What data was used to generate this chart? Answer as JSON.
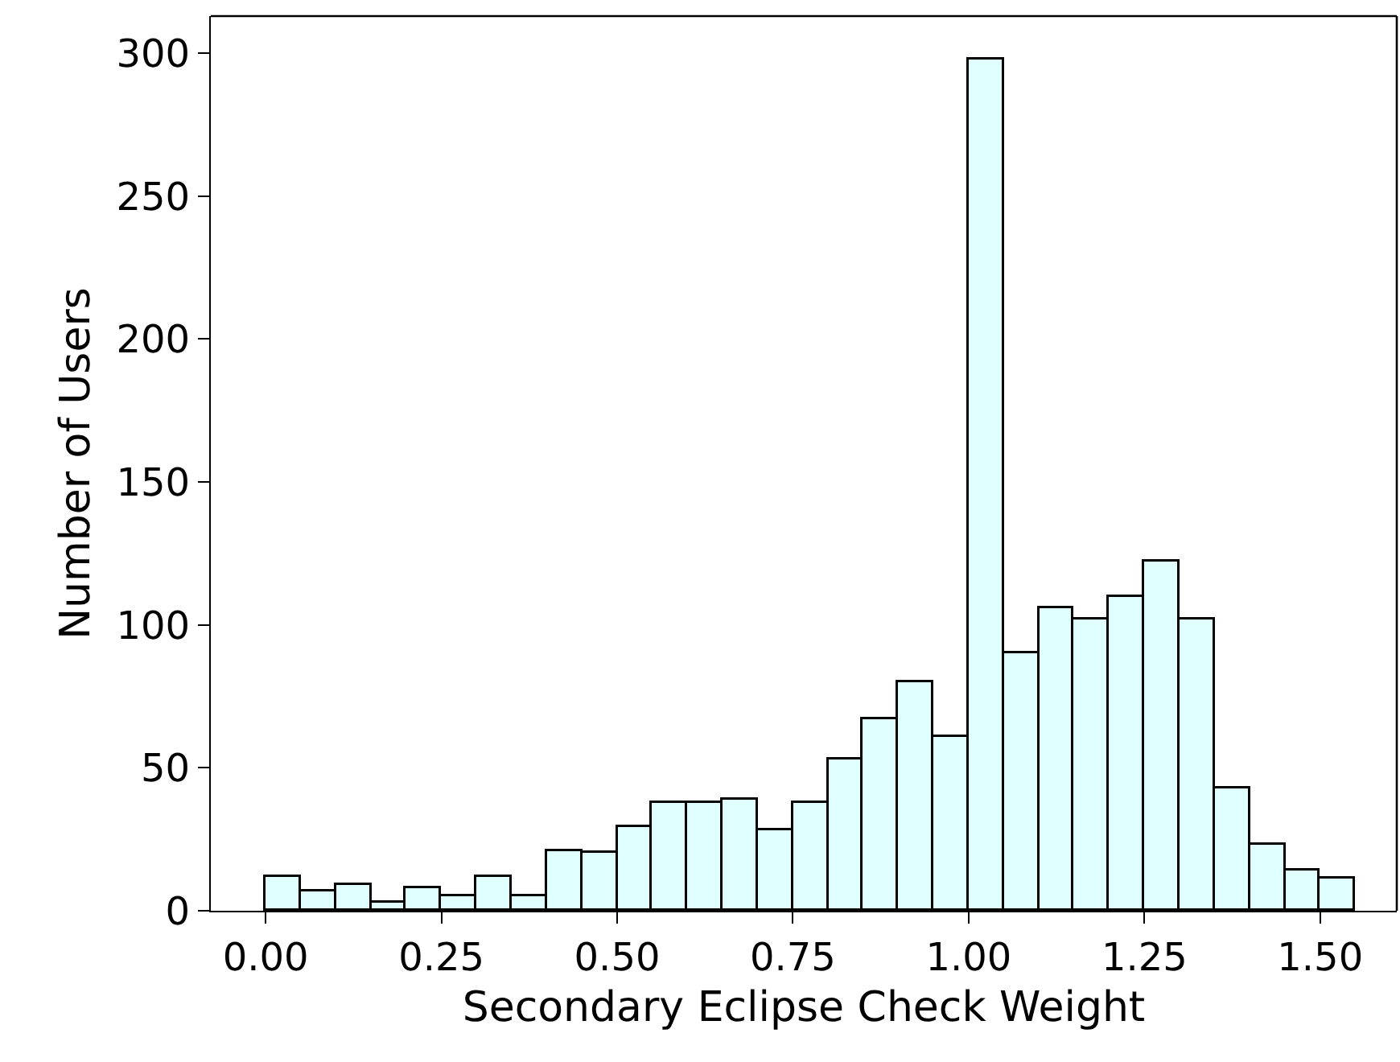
{
  "chart_data": {
    "type": "histogram",
    "xlabel": "Secondary Eclipse Check Weight",
    "ylabel": "Number of Users",
    "bins": [
      0,
      0.05,
      0.1,
      0.15,
      0.2,
      0.25,
      0.3,
      0.35,
      0.4,
      0.45,
      0.5,
      0.55,
      0.6,
      0.65,
      0.7,
      0.75,
      0.8,
      0.85,
      0.9,
      0.95,
      1.0,
      1.05,
      1.1,
      1.15,
      1.2,
      1.25,
      1.3,
      1.35,
      1.4,
      1.45,
      1.5,
      1.55
    ],
    "values": [
      12,
      7,
      9,
      3,
      8,
      5,
      12,
      5,
      21,
      20,
      29,
      38,
      38,
      39,
      28,
      38,
      53,
      67,
      80,
      61,
      298,
      90,
      106,
      102,
      110,
      122,
      102,
      43,
      23,
      14,
      11
    ],
    "color": "#e0ffff",
    "xlim": [
      -0.078,
      1.609
    ],
    "xticks": [
      {
        "value": 0,
        "label": "0.00"
      },
      {
        "value": 0.25,
        "label": "0.25"
      },
      {
        "value": 0.5,
        "label": "0.50"
      },
      {
        "value": 0.75,
        "label": "0.75"
      },
      {
        "value": 1,
        "label": "1.00"
      },
      {
        "value": 1.25,
        "label": "1.25"
      },
      {
        "value": 1.5,
        "label": "1.50"
      }
    ],
    "ylim": [
      0,
      313
    ],
    "yticks": [
      0,
      50,
      100,
      150,
      200,
      250,
      300
    ],
    "grid": false,
    "legend": false
  }
}
